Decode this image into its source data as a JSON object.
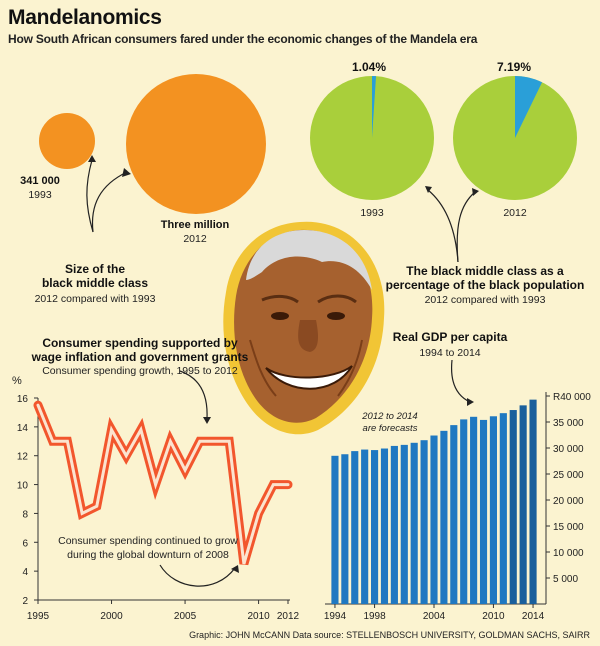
{
  "title": "Mandelanomics",
  "subtitle": "How South African consumers fared under the economic changes of the Mandela era",
  "size_section": {
    "small_value": "341 000",
    "small_year": "1993",
    "large_value": "Three million",
    "large_year": "2012",
    "heading_line1": "Size of the",
    "heading_line2": "black middle class",
    "note": "2012 compared with 1993",
    "color": "#f39221"
  },
  "pct_section": {
    "pie_1993_pct": "1.04%",
    "pie_2012_pct": "7.19%",
    "year_1993": "1993",
    "year_2012": "2012",
    "heading_line1": "The black middle class as a",
    "heading_line2": "percentage of the black population",
    "note": "2012 compared with 1993",
    "pie_colors": {
      "rest": "#a9cf3b",
      "share": "#2a9fd8"
    }
  },
  "spending_section": {
    "heading_line1": "Consumer spending supported by",
    "heading_line2": "wage inflation and government grants",
    "note": "Consumer spending growth, 1995 to 2012",
    "annotation_line1": "Consumer spending continued to grow",
    "annotation_line2": "during the global downturn of 2008",
    "y_unit": "%"
  },
  "gdp_section": {
    "heading": "Real GDP per capita",
    "note": "1994 to 2014",
    "forecast_line1": "2012 to 2014",
    "forecast_line2": "are forecasts"
  },
  "credit": "Graphic: JOHN McCANN  Data source: STELLENBOSCH UNIVERSITY, GOLDMAN SACHS, SAIRR",
  "chart_data": [
    {
      "type": "bubble",
      "title": "Size of the black middle class",
      "categories": [
        "1993",
        "2012"
      ],
      "values": [
        341000,
        3000000
      ],
      "labels": [
        "341 000",
        "Three million"
      ]
    },
    {
      "type": "pie",
      "title": "The black middle class as a percentage of the black population",
      "pies": [
        {
          "year": "1993",
          "value": 1.04
        },
        {
          "year": "2012",
          "value": 7.19
        }
      ]
    },
    {
      "type": "line",
      "title": "Consumer spending supported by wage inflation and government grants",
      "ylabel": "%",
      "x": [
        1995,
        1996,
        1997,
        1998,
        1999,
        2000,
        2001,
        2002,
        2003,
        2004,
        2005,
        2006,
        2007,
        2008,
        2009,
        2010,
        2011,
        2012
      ],
      "y": [
        15.5,
        13,
        13,
        8,
        8.5,
        13.8,
        12,
        13.8,
        10,
        13,
        11,
        13,
        13,
        13,
        4.5,
        8,
        10,
        10
      ],
      "xlim": [
        1995,
        2012
      ],
      "ylim": [
        2,
        16
      ],
      "xticks": [
        1995,
        2000,
        2005,
        2010,
        2012
      ],
      "yticks": [
        2,
        4,
        6,
        8,
        10,
        12,
        14,
        16
      ],
      "color": "#f2562d"
    },
    {
      "type": "bar",
      "title": "Real GDP per capita",
      "categories": [
        1994,
        1995,
        1996,
        1997,
        1998,
        1999,
        2000,
        2001,
        2002,
        2003,
        2004,
        2005,
        2006,
        2007,
        2008,
        2009,
        2010,
        2011,
        2012,
        2013,
        2014
      ],
      "values": [
        28500,
        28800,
        29400,
        29700,
        29600,
        29900,
        30400,
        30600,
        31000,
        31500,
        32400,
        33300,
        34400,
        35500,
        36000,
        35400,
        36100,
        36700,
        37300,
        38200,
        39300
      ],
      "xticks": [
        1994,
        1998,
        2004,
        2010,
        2014
      ],
      "ylim": [
        0,
        40000
      ],
      "ytick_labels": [
        "5 000",
        "10 000",
        "15 000",
        "20 000",
        "25 000",
        "30 000",
        "35 000",
        "R40 000"
      ],
      "yticks": [
        5000,
        10000,
        15000,
        20000,
        25000,
        30000,
        35000,
        40000
      ],
      "color": "#1f78c1",
      "forecast_color": "#1a5f9c"
    }
  ]
}
